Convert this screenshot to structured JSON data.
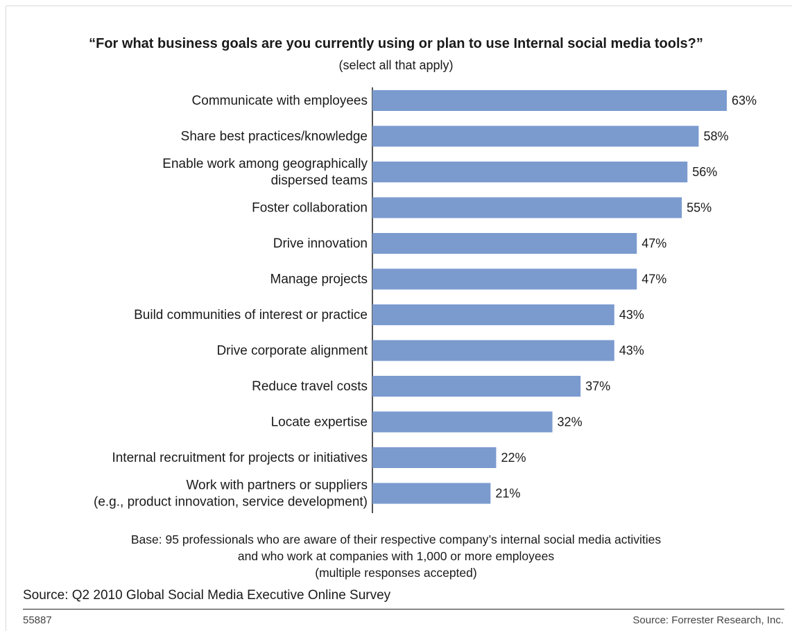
{
  "header": {
    "title": "“For what business goals are you currently using or plan to use Internal social media tools?”",
    "subtitle": "(select all that apply)"
  },
  "chart_data": {
    "type": "bar",
    "orientation": "horizontal",
    "title": "“For what business goals are you currently using or plan to use Internal social media tools?”",
    "subtitle": "(select all that apply)",
    "categories": [
      [
        "Communicate with employees"
      ],
      [
        "Share best practices/knowledge"
      ],
      [
        "Enable work among geographically",
        "dispersed teams"
      ],
      [
        "Foster collaboration"
      ],
      [
        "Drive innovation"
      ],
      [
        "Manage projects"
      ],
      [
        "Build communities of interest or practice"
      ],
      [
        "Drive corporate alignment"
      ],
      [
        "Reduce travel costs"
      ],
      [
        "Locate expertise"
      ],
      [
        "Internal recruitment for projects or initiatives"
      ],
      [
        "Work with partners or suppliers",
        "(e.g., product innovation, service development)"
      ]
    ],
    "values": [
      63,
      58,
      56,
      55,
      47,
      47,
      43,
      43,
      37,
      32,
      22,
      21
    ],
    "value_labels": [
      "63%",
      "58%",
      "56%",
      "55%",
      "47%",
      "47%",
      "43%",
      "43%",
      "37%",
      "32%",
      "22%",
      "21%"
    ],
    "unit": "%",
    "xlim": [
      0,
      63
    ],
    "bar_color": "#7b9bcf",
    "grid": false,
    "legend": "none"
  },
  "footer": {
    "base_lines": [
      "Base: 95 professionals who are aware of their respective company’s internal social media activities",
      "and who work at companies with 1,000 or more employees",
      "(multiple responses accepted)"
    ],
    "source": "Source: Q2 2010 Global Social Media Executive Online Survey",
    "code": "55887",
    "credit": "Source: Forrester Research, Inc."
  }
}
